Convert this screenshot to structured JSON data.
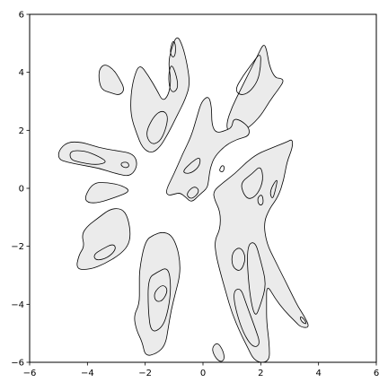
{
  "chart_data": {
    "type": "contour",
    "title": "",
    "xlabel": "",
    "ylabel": "",
    "xlim": [
      -6,
      6
    ],
    "ylim": [
      -6,
      6
    ],
    "x_ticks": [
      "−6",
      "−4",
      "−2",
      "0",
      "2",
      "4",
      "6"
    ],
    "y_ticks": [
      "6",
      "4",
      "2",
      "0",
      "−2",
      "−4",
      "−6"
    ],
    "grid": false,
    "fill_color": "#ebebeb",
    "line_color": "#000000",
    "levels": 2,
    "outer_regions": [
      {
        "name": "top-left-small",
        "points": [
          [
            -3.6,
            4.1
          ],
          [
            -3.4,
            4.3
          ],
          [
            -3.1,
            4.1
          ],
          [
            -2.9,
            3.8
          ],
          [
            -2.7,
            3.4
          ],
          [
            -2.9,
            3.2
          ],
          [
            -3.2,
            3.3
          ],
          [
            -3.5,
            3.4
          ],
          [
            -3.6,
            3.7
          ]
        ]
      },
      {
        "name": "upper-left-arm",
        "points": [
          [
            -2.2,
            4.3
          ],
          [
            -1.9,
            3.9
          ],
          [
            -1.6,
            3.4
          ],
          [
            -1.4,
            3.0
          ],
          [
            -1.2,
            3.2
          ],
          [
            -1.1,
            3.7
          ],
          [
            -1.2,
            4.3
          ],
          [
            -1.1,
            4.8
          ],
          [
            -0.9,
            5.3
          ],
          [
            -0.7,
            4.9
          ],
          [
            -0.55,
            4.3
          ],
          [
            -0.45,
            3.6
          ],
          [
            -0.6,
            3.1
          ],
          [
            -0.9,
            2.5
          ],
          [
            -1.2,
            1.9
          ],
          [
            -1.5,
            1.4
          ],
          [
            -1.8,
            1.2
          ],
          [
            -2.1,
            1.4
          ],
          [
            -2.3,
            1.9
          ],
          [
            -2.5,
            2.5
          ],
          [
            -2.5,
            3.2
          ],
          [
            -2.4,
            3.8
          ]
        ]
      },
      {
        "name": "top-right-arm",
        "points": [
          [
            1.6,
            4.0
          ],
          [
            1.9,
            4.6
          ],
          [
            2.1,
            5.0
          ],
          [
            2.2,
            4.8
          ],
          [
            2.3,
            4.2
          ],
          [
            2.5,
            3.8
          ],
          [
            2.7,
            3.8
          ],
          [
            2.8,
            3.7
          ],
          [
            2.6,
            3.4
          ],
          [
            2.3,
            3.0
          ],
          [
            2.0,
            2.5
          ],
          [
            1.6,
            2.1
          ],
          [
            1.2,
            1.9
          ],
          [
            0.9,
            1.9
          ],
          [
            0.8,
            2.2
          ],
          [
            1.0,
            2.8
          ],
          [
            1.3,
            3.4
          ]
        ]
      },
      {
        "name": "left-upper-blob",
        "points": [
          [
            -5.0,
            1.3
          ],
          [
            -4.7,
            1.6
          ],
          [
            -4.2,
            1.6
          ],
          [
            -3.6,
            1.4
          ],
          [
            -3.0,
            1.3
          ],
          [
            -2.4,
            1.2
          ],
          [
            -2.25,
            0.8
          ],
          [
            -2.5,
            0.4
          ],
          [
            -3.0,
            0.5
          ],
          [
            -3.6,
            0.7
          ],
          [
            -4.2,
            0.8
          ],
          [
            -4.7,
            0.9
          ],
          [
            -5.0,
            1.0
          ]
        ]
      },
      {
        "name": "left-middle-blob",
        "points": [
          [
            -4.1,
            -0.3
          ],
          [
            -3.8,
            0.2
          ],
          [
            -3.3,
            0.2
          ],
          [
            -2.8,
            0.1
          ],
          [
            -2.5,
            -0.1
          ],
          [
            -3.0,
            -0.3
          ],
          [
            -3.6,
            -0.5
          ],
          [
            -4.0,
            -0.5
          ]
        ]
      },
      {
        "name": "left-lower-blob",
        "points": [
          [
            -4.2,
            -1.6
          ],
          [
            -4.0,
            -1.3
          ],
          [
            -3.6,
            -1.0
          ],
          [
            -3.2,
            -0.7
          ],
          [
            -2.8,
            -0.7
          ],
          [
            -2.6,
            -1.0
          ],
          [
            -2.5,
            -1.6
          ],
          [
            -2.6,
            -2.0
          ],
          [
            -2.9,
            -2.3
          ],
          [
            -3.4,
            -2.6
          ],
          [
            -3.9,
            -2.8
          ],
          [
            -4.4,
            -2.8
          ],
          [
            -4.3,
            -2.3
          ],
          [
            -4.1,
            -2.0
          ]
        ]
      },
      {
        "name": "central-column",
        "points": [
          [
            -1.3,
            -0.1
          ],
          [
            -1.0,
            0.5
          ],
          [
            -0.7,
            1.2
          ],
          [
            -0.4,
            1.8
          ],
          [
            -0.2,
            2.5
          ],
          [
            -0.05,
            3.0
          ],
          [
            0.2,
            3.2
          ],
          [
            0.3,
            2.8
          ],
          [
            0.3,
            2.2
          ],
          [
            0.45,
            1.9
          ],
          [
            0.8,
            2.0
          ],
          [
            1.0,
            2.1
          ],
          [
            1.05,
            2.4
          ],
          [
            1.3,
            2.35
          ],
          [
            1.6,
            2.1
          ],
          [
            1.6,
            1.8
          ],
          [
            1.2,
            1.7
          ],
          [
            0.8,
            1.5
          ],
          [
            0.4,
            1.1
          ],
          [
            0.25,
            0.7
          ],
          [
            0.2,
            0.3
          ],
          [
            0.15,
            0.0
          ],
          [
            -0.1,
            -0.2
          ],
          [
            -0.4,
            -0.5
          ],
          [
            -0.6,
            -0.3
          ],
          [
            -0.8,
            -0.15
          ],
          [
            -1.0,
            -0.2
          ],
          [
            -1.2,
            -0.25
          ]
        ]
      },
      {
        "name": "lower-left-column",
        "points": [
          [
            -2.0,
            -1.8
          ],
          [
            -1.7,
            -1.6
          ],
          [
            -1.4,
            -1.5
          ],
          [
            -1.1,
            -1.6
          ],
          [
            -0.9,
            -2.0
          ],
          [
            -0.8,
            -2.5
          ],
          [
            -0.8,
            -3.0
          ],
          [
            -0.95,
            -3.6
          ],
          [
            -1.1,
            -4.2
          ],
          [
            -1.2,
            -4.8
          ],
          [
            -1.3,
            -5.4
          ],
          [
            -1.6,
            -5.7
          ],
          [
            -2.0,
            -5.8
          ],
          [
            -2.1,
            -5.3
          ],
          [
            -2.3,
            -4.9
          ],
          [
            -2.4,
            -4.4
          ],
          [
            -2.2,
            -4.0
          ],
          [
            -2.2,
            -3.4
          ],
          [
            -2.2,
            -2.8
          ]
        ]
      },
      {
        "name": "right-arm",
        "points": [
          [
            0.4,
            -1.8
          ],
          [
            0.6,
            -1.4
          ],
          [
            0.6,
            -0.8
          ],
          [
            0.4,
            -0.4
          ],
          [
            0.35,
            -0.1
          ],
          [
            0.7,
            0.2
          ],
          [
            1.1,
            0.5
          ],
          [
            1.5,
            0.9
          ],
          [
            1.9,
            1.2
          ],
          [
            2.4,
            1.4
          ],
          [
            2.9,
            1.6
          ],
          [
            3.1,
            1.7
          ],
          [
            3.1,
            1.4
          ],
          [
            2.9,
            0.9
          ],
          [
            2.8,
            0.3
          ],
          [
            2.6,
            -0.3
          ],
          [
            2.3,
            -0.7
          ],
          [
            2.1,
            -1.2
          ],
          [
            2.2,
            -1.9
          ],
          [
            2.5,
            -2.5
          ],
          [
            2.8,
            -3.1
          ],
          [
            3.1,
            -3.7
          ],
          [
            3.3,
            -4.1
          ],
          [
            3.5,
            -4.4
          ],
          [
            3.7,
            -4.8
          ],
          [
            3.4,
            -4.8
          ],
          [
            3.2,
            -4.6
          ],
          [
            2.8,
            -4.2
          ],
          [
            2.5,
            -3.8
          ],
          [
            2.2,
            -3.3
          ],
          [
            2.2,
            -4.0
          ],
          [
            2.2,
            -4.6
          ],
          [
            2.3,
            -5.4
          ],
          [
            2.3,
            -6.0
          ],
          [
            1.8,
            -6.0
          ],
          [
            1.5,
            -5.4
          ],
          [
            1.3,
            -5.0
          ],
          [
            1.0,
            -4.3
          ],
          [
            0.8,
            -3.6
          ],
          [
            0.6,
            -2.9
          ],
          [
            0.45,
            -2.3
          ]
        ]
      },
      {
        "name": "bottom-small",
        "points": [
          [
            0.3,
            -5.5
          ],
          [
            0.5,
            -5.3
          ],
          [
            0.7,
            -5.6
          ],
          [
            0.75,
            -5.9
          ],
          [
            0.6,
            -6.0
          ],
          [
            0.4,
            -5.8
          ]
        ]
      }
    ],
    "inner_regions": [
      {
        "name": "upper-left-arm-inner",
        "points": [
          [
            -2.0,
            1.9
          ],
          [
            -1.7,
            2.5
          ],
          [
            -1.4,
            2.7
          ],
          [
            -1.2,
            2.5
          ],
          [
            -1.3,
            2.0
          ],
          [
            -1.5,
            1.6
          ],
          [
            -1.8,
            1.5
          ]
        ]
      },
      {
        "name": "upper-left-arm-lobe",
        "points": [
          [
            -1.2,
            3.9
          ],
          [
            -1.1,
            4.3
          ],
          [
            -0.95,
            4.0
          ],
          [
            -0.85,
            3.5
          ],
          [
            -1.0,
            3.3
          ],
          [
            -1.15,
            3.4
          ]
        ]
      },
      {
        "name": "upper-left-arm-tip",
        "points": [
          [
            -1.15,
            4.7
          ],
          [
            -1.05,
            5.1
          ],
          [
            -0.95,
            5.0
          ],
          [
            -0.95,
            4.6
          ],
          [
            -1.05,
            4.5
          ]
        ]
      },
      {
        "name": "top-right-arm-inner",
        "points": [
          [
            1.1,
            3.4
          ],
          [
            1.4,
            3.9
          ],
          [
            1.7,
            4.3
          ],
          [
            2.0,
            4.7
          ],
          [
            2.0,
            4.2
          ],
          [
            1.9,
            3.7
          ],
          [
            1.6,
            3.3
          ],
          [
            1.3,
            3.2
          ]
        ]
      },
      {
        "name": "left-upper-inner",
        "points": [
          [
            -4.6,
            1.3
          ],
          [
            -4.1,
            1.3
          ],
          [
            -3.6,
            1.1
          ],
          [
            -3.3,
            0.9
          ],
          [
            -3.7,
            0.8
          ],
          [
            -4.3,
            0.9
          ],
          [
            -4.6,
            1.0
          ]
        ]
      },
      {
        "name": "left-upper-dot",
        "points": [
          [
            -2.8,
            0.9
          ],
          [
            -2.6,
            0.9
          ],
          [
            -2.55,
            0.75
          ],
          [
            -2.7,
            0.7
          ],
          [
            -2.85,
            0.8
          ]
        ]
      },
      {
        "name": "left-lower-inner",
        "points": [
          [
            -3.8,
            -2.3
          ],
          [
            -3.5,
            -2.1
          ],
          [
            -3.1,
            -1.9
          ],
          [
            -3.0,
            -2.1
          ],
          [
            -3.3,
            -2.4
          ],
          [
            -3.7,
            -2.5
          ]
        ]
      },
      {
        "name": "central-column-inner",
        "points": [
          [
            -0.7,
            0.6
          ],
          [
            -0.4,
            0.9
          ],
          [
            -0.1,
            1.1
          ],
          [
            -0.1,
            0.8
          ],
          [
            -0.35,
            0.55
          ],
          [
            -0.6,
            0.5
          ]
        ]
      },
      {
        "name": "central-column-small",
        "points": [
          [
            -0.6,
            -0.2
          ],
          [
            -0.3,
            0.1
          ],
          [
            -0.1,
            -0.1
          ],
          [
            -0.4,
            -0.4
          ]
        ]
      },
      {
        "name": "lower-left-inner",
        "points": [
          [
            -1.9,
            -3.1
          ],
          [
            -1.6,
            -2.9
          ],
          [
            -1.2,
            -2.7
          ],
          [
            -1.1,
            -3.4
          ],
          [
            -1.2,
            -4.2
          ],
          [
            -1.4,
            -4.8
          ],
          [
            -1.8,
            -5.0
          ],
          [
            -1.9,
            -4.2
          ]
        ]
      },
      {
        "name": "lower-left-core",
        "points": [
          [
            -1.7,
            -3.6
          ],
          [
            -1.4,
            -3.3
          ],
          [
            -1.2,
            -3.5
          ],
          [
            -1.4,
            -3.9
          ],
          [
            -1.65,
            -3.9
          ]
        ]
      },
      {
        "name": "right-arm-inner-a",
        "points": [
          [
            1.0,
            -2.2
          ],
          [
            1.3,
            -2.0
          ],
          [
            1.5,
            -2.4
          ],
          [
            1.3,
            -2.9
          ],
          [
            1.0,
            -2.7
          ]
        ]
      },
      {
        "name": "right-arm-inner-b",
        "points": [
          [
            1.3,
            0.2
          ],
          [
            1.7,
            0.5
          ],
          [
            2.0,
            0.8
          ],
          [
            2.1,
            0.3
          ],
          [
            1.9,
            -0.2
          ],
          [
            1.6,
            -0.4
          ],
          [
            1.4,
            -0.2
          ]
        ]
      },
      {
        "name": "right-arm-inner-c",
        "points": [
          [
            1.5,
            -2.0
          ],
          [
            1.8,
            -1.8
          ],
          [
            2.0,
            -2.5
          ],
          [
            2.2,
            -3.3
          ],
          [
            2.0,
            -4.0
          ],
          [
            1.8,
            -4.5
          ],
          [
            1.6,
            -3.6
          ]
        ]
      },
      {
        "name": "right-arm-inner-d",
        "points": [
          [
            1.0,
            -3.6
          ],
          [
            1.3,
            -3.4
          ],
          [
            1.5,
            -4.0
          ],
          [
            1.8,
            -4.8
          ],
          [
            2.0,
            -5.4
          ],
          [
            1.7,
            -5.5
          ],
          [
            1.3,
            -4.8
          ]
        ]
      },
      {
        "name": "right-arm-dot-a",
        "points": [
          [
            1.9,
            -0.3
          ],
          [
            2.05,
            -0.2
          ],
          [
            2.1,
            -0.5
          ],
          [
            2.0,
            -0.6
          ],
          [
            1.9,
            -0.5
          ]
        ]
      },
      {
        "name": "right-arm-dot-b",
        "points": [
          [
            2.3,
            -0.1
          ],
          [
            2.6,
            0.4
          ],
          [
            2.5,
            -0.1
          ],
          [
            2.4,
            -0.4
          ]
        ]
      },
      {
        "name": "right-arm-tip-inner",
        "points": [
          [
            3.35,
            -4.4
          ],
          [
            3.5,
            -4.5
          ],
          [
            3.6,
            -4.7
          ],
          [
            3.4,
            -4.6
          ]
        ]
      },
      {
        "name": "speck-near-center",
        "points": [
          [
            0.55,
            0.6
          ],
          [
            0.65,
            0.8
          ],
          [
            0.75,
            0.75
          ],
          [
            0.7,
            0.55
          ]
        ]
      }
    ]
  }
}
